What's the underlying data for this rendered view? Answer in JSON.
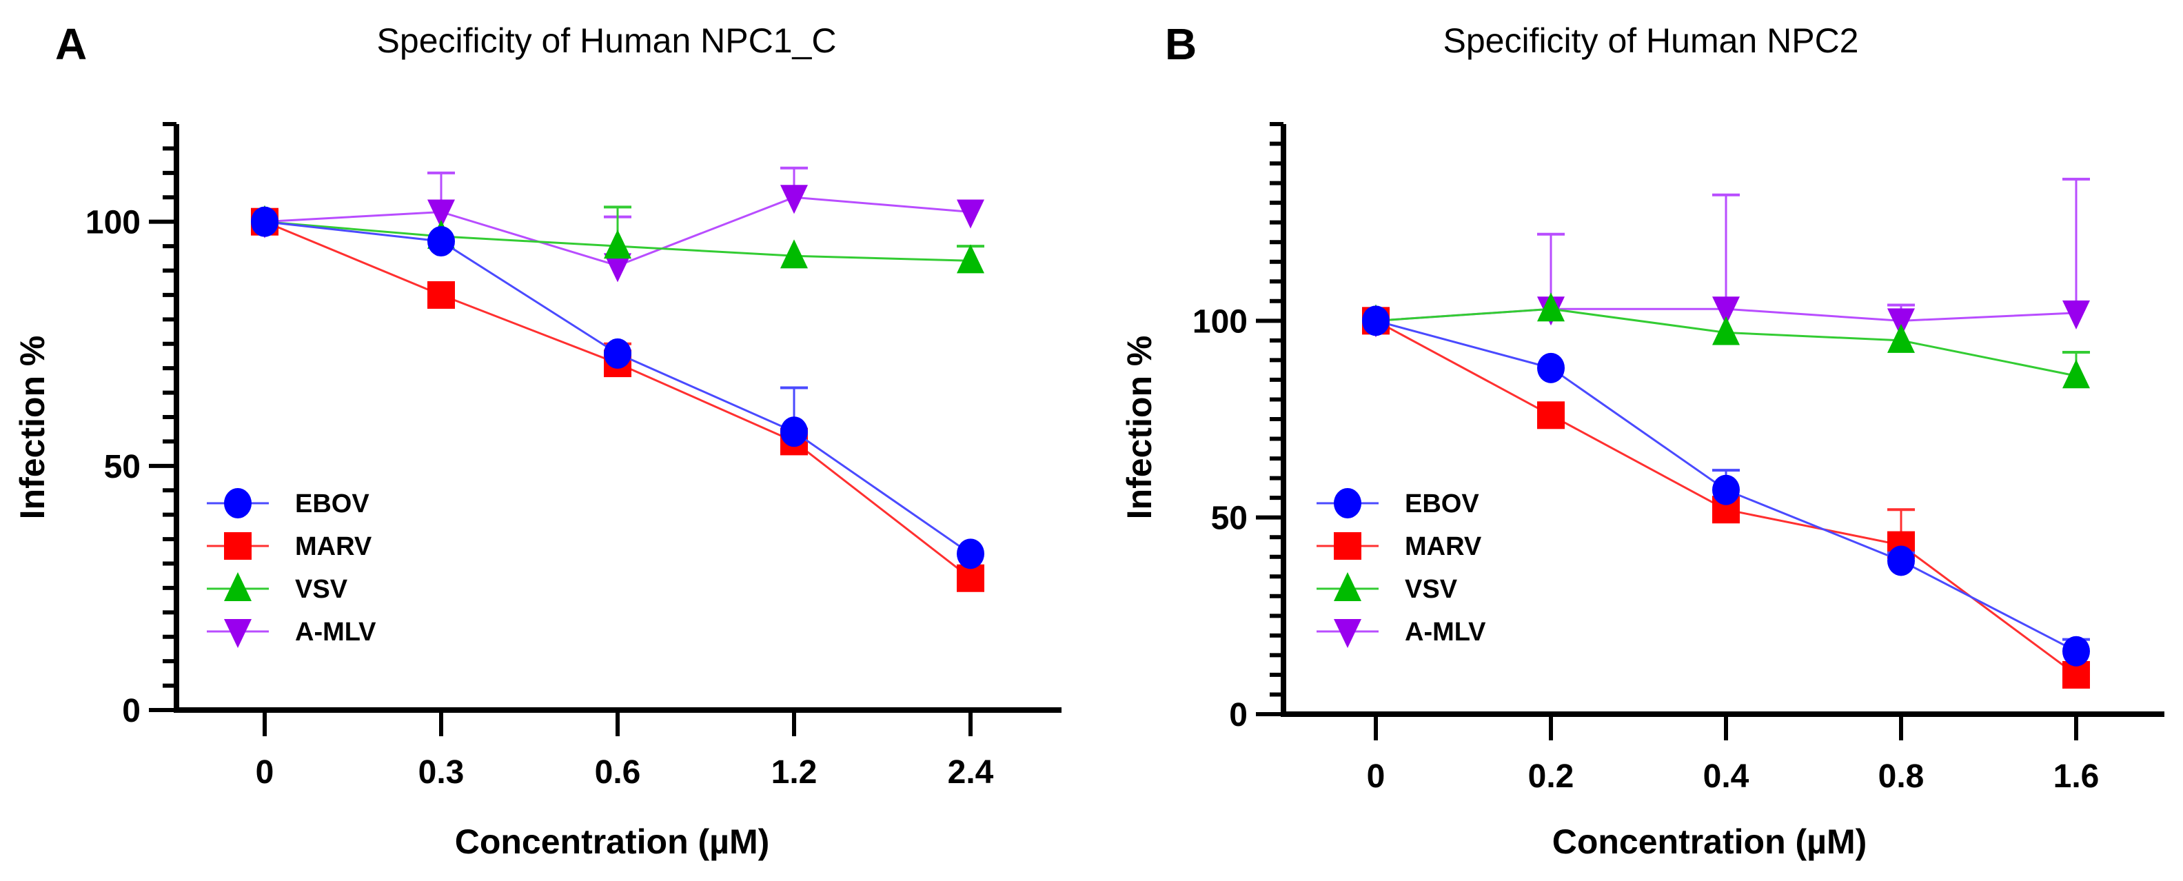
{
  "chart_data": [
    {
      "type": "line",
      "panel": "A",
      "title": "Specificity of Human NPC1_C",
      "xlabel": "Concentration (µM)",
      "ylabel": "Infection %",
      "categories": [
        "0",
        "0.3",
        "0.6",
        "1.2",
        "2.4"
      ],
      "ylim": [
        0,
        120
      ],
      "yticks": [
        0,
        50,
        100
      ],
      "yticks_labels": [
        "0",
        "50",
        "100"
      ],
      "minor_tick_step": 5,
      "grid": false,
      "legend_position": "bottom-left",
      "series": [
        {
          "name": "EBOV",
          "marker": "circle",
          "color": "#0000ff",
          "line_color": "#4a4aff",
          "values": [
            100,
            96,
            73,
            57,
            32
          ],
          "error_upper": [
            100,
            96,
            73,
            66,
            32
          ]
        },
        {
          "name": "MARV",
          "marker": "square",
          "color": "#ff0000",
          "line_color": "#ff3030",
          "values": [
            100,
            85,
            71,
            55,
            27
          ],
          "error_upper": [
            100,
            85,
            75,
            55,
            27
          ]
        },
        {
          "name": "VSV",
          "marker": "triangle-up",
          "color": "#00bb00",
          "line_color": "#33cc33",
          "values": [
            100,
            97,
            95,
            93,
            92
          ],
          "error_upper": [
            100,
            97,
            103,
            93,
            95
          ]
        },
        {
          "name": "A-MLV",
          "marker": "triangle-down",
          "color": "#9900ee",
          "line_color": "#b84dff",
          "values": [
            100,
            102,
            91,
            105,
            102
          ],
          "error_upper": [
            100,
            110,
            101,
            111,
            102
          ]
        }
      ]
    },
    {
      "type": "line",
      "panel": "B",
      "title": "Specificity of Human NPC2",
      "xlabel": "Concentration (µM)",
      "ylabel": "Infection %",
      "categories": [
        "0",
        "0.2",
        "0.4",
        "0.8",
        "1.6"
      ],
      "ylim": [
        0,
        150
      ],
      "yticks": [
        0,
        50,
        100
      ],
      "yticks_labels": [
        "0",
        "50",
        "100"
      ],
      "minor_tick_step": 5,
      "grid": false,
      "legend_position": "bottom-left",
      "series": [
        {
          "name": "EBOV",
          "marker": "circle",
          "color": "#0000ff",
          "line_color": "#4a4aff",
          "values": [
            100,
            88,
            57,
            39,
            16
          ],
          "error_upper": [
            100,
            88,
            62,
            41,
            19
          ]
        },
        {
          "name": "MARV",
          "marker": "square",
          "color": "#ff0000",
          "line_color": "#ff3030",
          "values": [
            100,
            76,
            52,
            43,
            10
          ],
          "error_upper": [
            100,
            76,
            52,
            52,
            10
          ]
        },
        {
          "name": "VSV",
          "marker": "triangle-up",
          "color": "#00bb00",
          "line_color": "#33cc33",
          "values": [
            100,
            103,
            97,
            95,
            86
          ],
          "error_upper": [
            100,
            103,
            97,
            95,
            92
          ]
        },
        {
          "name": "A-MLV",
          "marker": "triangle-down",
          "color": "#9900ee",
          "line_color": "#b84dff",
          "values": [
            100,
            103,
            103,
            100,
            102
          ],
          "error_upper": [
            100,
            122,
            132,
            104,
            136
          ]
        }
      ]
    }
  ]
}
